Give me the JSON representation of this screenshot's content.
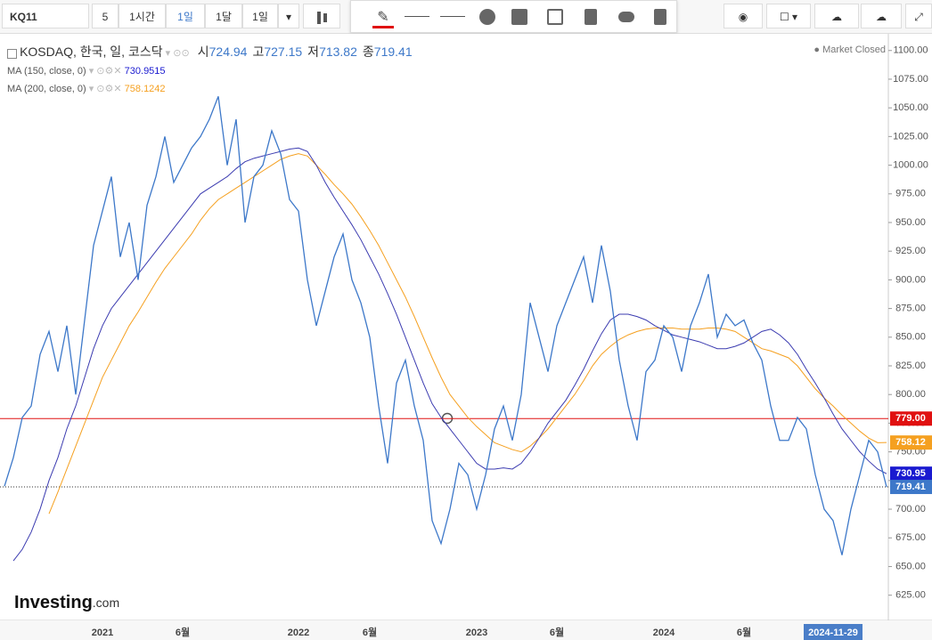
{
  "toolbar": {
    "symbol": "KQ11",
    "intervals": [
      "5",
      "1시간",
      "1일",
      "1달",
      "1일"
    ]
  },
  "market_status": "Market Closed",
  "logo": {
    "name": "Investing",
    "suffix": ".com"
  },
  "chart_data": {
    "type": "line",
    "ohlc": [
      {
        "label": "시",
        "value": 724.94
      },
      {
        "label": "고",
        "value": 727.15
      },
      {
        "label": "저",
        "value": 713.82
      },
      {
        "label": "종",
        "value": 719.41
      }
    ],
    "categories": [
      null,
      null,
      null,
      null,
      null,
      null,
      null,
      null,
      null,
      null,
      null,
      "2021",
      null,
      null,
      null,
      null,
      null,
      null,
      null,
      null,
      "6월",
      null,
      null,
      null,
      null,
      null,
      null,
      null,
      null,
      null,
      null,
      null,
      null,
      "2022",
      null,
      null,
      null,
      null,
      null,
      null,
      null,
      "6월",
      null,
      null,
      null,
      null,
      null,
      null,
      null,
      null,
      null,
      null,
      null,
      "2023",
      null,
      null,
      null,
      null,
      null,
      null,
      null,
      null,
      "6월",
      null,
      null,
      null,
      null,
      null,
      null,
      null,
      null,
      null,
      null,
      null,
      "2024",
      null,
      null,
      null,
      null,
      null,
      null,
      null,
      null,
      "6월",
      null,
      null,
      null,
      null,
      null,
      null,
      null,
      null,
      null,
      "2024-11-29",
      null,
      null,
      null,
      null,
      null,
      null
    ],
    "series": [
      {
        "name": "KOSDAQ, 한국, 일, 코스닥",
        "color": "#3d78c9",
        "values": [
          720,
          745,
          780,
          790,
          835,
          855,
          820,
          860,
          800,
          865,
          930,
          960,
          990,
          920,
          950,
          900,
          965,
          990,
          1025,
          985,
          1000,
          1015,
          1025,
          1040,
          1060,
          1000,
          1040,
          950,
          990,
          1000,
          1030,
          1010,
          970,
          960,
          900,
          860,
          890,
          920,
          940,
          900,
          880,
          850,
          790,
          740,
          810,
          830,
          790,
          760,
          690,
          670,
          700,
          740,
          730,
          700,
          730,
          770,
          790,
          760,
          800,
          880,
          850,
          820,
          860,
          880,
          900,
          920,
          880,
          930,
          890,
          830,
          790,
          760,
          820,
          830,
          860,
          850,
          820,
          860,
          880,
          905,
          850,
          870,
          860,
          865,
          845,
          830,
          790,
          760,
          760,
          780,
          770,
          730,
          700,
          690,
          660,
          700,
          730,
          760,
          750,
          719.41
        ]
      },
      {
        "name": "MA (150, close, 0)",
        "color": "#3b3bb0",
        "legend_value": 730.9515,
        "values": [
          null,
          655,
          665,
          680,
          700,
          725,
          745,
          770,
          790,
          815,
          840,
          860,
          875,
          885,
          895,
          905,
          915,
          925,
          935,
          945,
          955,
          965,
          975,
          980,
          985,
          990,
          997,
          1003,
          1006,
          1008,
          1010,
          1012,
          1014,
          1015,
          1012,
          1000,
          985,
          972,
          960,
          948,
          935,
          920,
          905,
          888,
          870,
          850,
          830,
          810,
          792,
          780,
          770,
          760,
          750,
          740,
          735,
          735,
          736,
          735,
          740,
          750,
          762,
          775,
          785,
          795,
          808,
          822,
          838,
          853,
          865,
          870,
          870,
          868,
          865,
          860,
          856,
          852,
          850,
          848,
          846,
          843,
          840,
          840,
          842,
          845,
          850,
          855,
          857,
          852,
          845,
          835,
          822,
          810,
          797,
          783,
          770,
          760,
          750,
          742,
          735,
          730.95
        ]
      },
      {
        "name": "MA (200, close, 0)",
        "color": "#f5a020",
        "legend_value": 758.1242,
        "values": [
          null,
          null,
          null,
          null,
          null,
          696,
          715,
          735,
          755,
          775,
          795,
          815,
          830,
          845,
          860,
          872,
          885,
          898,
          910,
          920,
          930,
          940,
          952,
          962,
          970,
          975,
          980,
          985,
          990,
          995,
          1000,
          1005,
          1008,
          1010,
          1008,
          1000,
          992,
          983,
          975,
          966,
          955,
          943,
          930,
          915,
          900,
          885,
          868,
          850,
          832,
          815,
          800,
          790,
          780,
          772,
          765,
          758,
          755,
          752,
          750,
          755,
          762,
          770,
          780,
          790,
          800,
          812,
          825,
          835,
          842,
          848,
          852,
          855,
          857,
          858,
          858,
          858,
          857,
          857,
          857,
          858,
          858,
          857,
          855,
          850,
          845,
          840,
          838,
          835,
          832,
          825,
          815,
          805,
          797,
          790,
          782,
          775,
          768,
          762,
          758,
          758.12
        ]
      }
    ],
    "ylim": [
      603,
      1113
    ],
    "yticks": [
      {
        "value": 625,
        "label": "625.00"
      },
      {
        "value": 650,
        "label": "650.00"
      },
      {
        "value": 675,
        "label": "675.00"
      },
      {
        "value": 700,
        "label": "700.00"
      },
      {
        "value": 725,
        "label": "725.00"
      },
      {
        "value": 750,
        "label": "750.00"
      },
      {
        "value": 775,
        "label": "775.00"
      },
      {
        "value": 800,
        "label": "800.00"
      },
      {
        "value": 825,
        "label": "825.00"
      },
      {
        "value": 850,
        "label": "850.00"
      },
      {
        "value": 875,
        "label": "875.00"
      },
      {
        "value": 900,
        "label": "900.00"
      },
      {
        "value": 925,
        "label": "925.00"
      },
      {
        "value": 950,
        "label": "950.00"
      },
      {
        "value": 975,
        "label": "975.00"
      },
      {
        "value": 1000,
        "label": "1000.00"
      },
      {
        "value": 1025,
        "label": "1025.00"
      },
      {
        "value": 1050,
        "label": "1050.00"
      },
      {
        "value": 1075,
        "label": "1075.00"
      },
      {
        "value": 1100,
        "label": "1100.00"
      }
    ],
    "price_labels": [
      {
        "value": 779,
        "label": "779.00",
        "color": "#e01010",
        "line": "solid"
      },
      {
        "value": 758.12,
        "label": "758.12",
        "color": "#f5a020"
      },
      {
        "value": 730.95,
        "label": "730.95",
        "color": "#1a1ad0"
      },
      {
        "value": 719.41,
        "label": "719.41",
        "color": "#3d78c9",
        "line": "dotted"
      }
    ],
    "crosshair_color": "#4a7ec8"
  }
}
